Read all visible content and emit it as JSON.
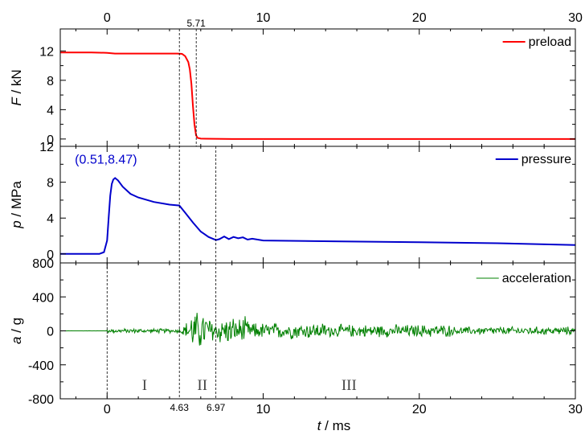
{
  "chart_data": {
    "type": "line",
    "shared_x": {
      "label": "t / ms",
      "label_italic": "t",
      "label_unit": " / ms",
      "lim": [
        -3,
        30
      ],
      "ticks": [
        0,
        10,
        20,
        30
      ],
      "tick_labels": [
        "0",
        "10",
        "20",
        "30"
      ]
    },
    "panels": [
      {
        "id": "force",
        "ylabel_italic": "F",
        "ylabel_unit": " / kN",
        "ylim": [
          -1,
          15
        ],
        "yticks": [
          0,
          4,
          8,
          12
        ],
        "ytick_labels": [
          "0",
          "4",
          "8",
          "12"
        ],
        "series": [
          {
            "name": "preload",
            "color": "#ff0000",
            "x": [
              -3,
              -1,
              0,
              0.5,
              1,
              2,
              3,
              4,
              4.5,
              4.8,
              5.0,
              5.2,
              5.3,
              5.4,
              5.5,
              5.6,
              5.7,
              5.8,
              6,
              8,
              12,
              20,
              30
            ],
            "y": [
              11.8,
              11.8,
              11.75,
              11.65,
              11.65,
              11.65,
              11.65,
              11.65,
              11.65,
              11.6,
              11.3,
              10.5,
              9.5,
              7.5,
              4.5,
              2.0,
              0.5,
              0.15,
              0.05,
              0.0,
              0.0,
              0.0,
              0.0
            ]
          }
        ]
      },
      {
        "id": "pressure",
        "ylabel_italic": "p",
        "ylabel_unit": " / MPa",
        "ylim": [
          -1,
          12
        ],
        "yticks": [
          0,
          4,
          8,
          12
        ],
        "ytick_labels": [
          "0",
          "4",
          "8",
          "12"
        ],
        "series": [
          {
            "name": "pressure",
            "color": "#0000cc",
            "x": [
              -3,
              -0.5,
              -0.2,
              0,
              0.1,
              0.2,
              0.3,
              0.4,
              0.51,
              0.7,
              1.0,
              1.5,
              2.0,
              3.0,
              4.0,
              4.63,
              5.0,
              5.5,
              6.0,
              6.5,
              6.97,
              7.2,
              7.5,
              7.8,
              8.1,
              8.4,
              8.7,
              9.0,
              9.3,
              10,
              15,
              20,
              25,
              30
            ],
            "y": [
              0.0,
              0.0,
              0.2,
              1.5,
              4.0,
              6.5,
              7.8,
              8.3,
              8.47,
              8.2,
              7.5,
              6.7,
              6.3,
              5.8,
              5.5,
              5.4,
              4.6,
              3.5,
              2.5,
              1.9,
              1.55,
              1.65,
              1.95,
              1.65,
              1.9,
              1.75,
              1.85,
              1.6,
              1.7,
              1.5,
              1.4,
              1.3,
              1.2,
              1.0
            ]
          }
        ],
        "annotations": [
          {
            "text": "(0.51,8.47)",
            "x": 0.51,
            "y": 8.47
          }
        ]
      },
      {
        "id": "acceleration",
        "ylabel_italic": "a",
        "ylabel_unit": " / g",
        "ylim": [
          -800,
          800
        ],
        "yticks": [
          -800,
          -400,
          0,
          400,
          800
        ],
        "ytick_labels": [
          "-800",
          "-400",
          "0",
          "400",
          "800"
        ],
        "series": [
          {
            "name": "acceleration",
            "color": "#008000"
          }
        ],
        "regions": [
          {
            "label": "I",
            "x": 2.4
          },
          {
            "label": "II",
            "x": 6.1
          },
          {
            "label": "III",
            "x": 15.5
          }
        ]
      }
    ],
    "markers": [
      {
        "x": 0,
        "label": ""
      },
      {
        "x": 4.63,
        "label": "4.63"
      },
      {
        "x": 5.71,
        "label": "5.71"
      },
      {
        "x": 6.97,
        "label": "6.97"
      }
    ],
    "colors": {
      "preload": "#ff0000",
      "pressure": "#0000cc",
      "acceleration": "#008000"
    }
  }
}
